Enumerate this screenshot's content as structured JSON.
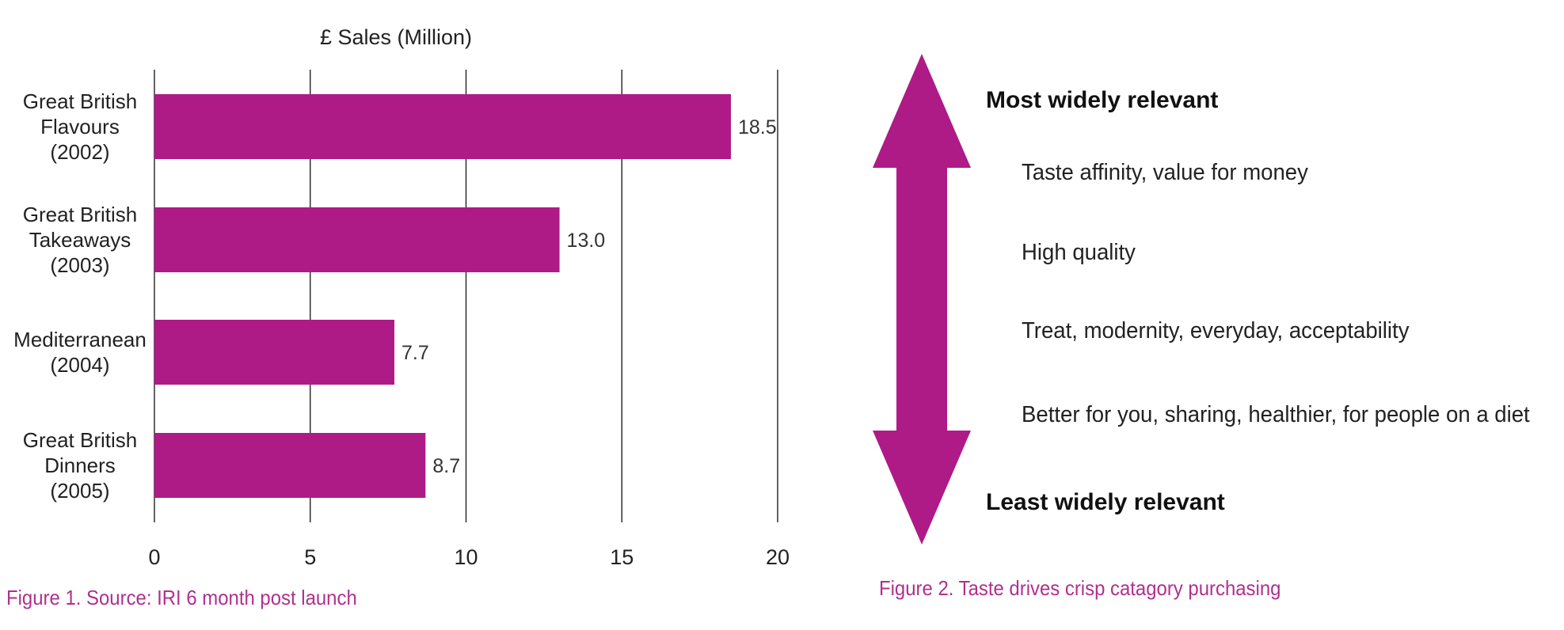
{
  "colors": {
    "bar": "#ae1a86",
    "caption": "#b0308f",
    "arrow": "#ae1a86"
  },
  "chart_data": {
    "type": "bar",
    "orientation": "horizontal",
    "title": "£ Sales (Million)",
    "categories": [
      [
        "Great British",
        "Flavours",
        "(2002)"
      ],
      [
        "Great British",
        "Takeaways",
        "(2003)"
      ],
      [
        "Mediterranean",
        "(2004)"
      ],
      [
        "Great British",
        "Dinners",
        "(2005)"
      ]
    ],
    "values": [
      18.5,
      13.0,
      7.7,
      8.7
    ],
    "value_labels": [
      "18.5",
      "13.0",
      "7.7",
      "8.7"
    ],
    "xlim": [
      0,
      20
    ],
    "xticks": [
      0,
      5,
      10,
      15,
      20
    ],
    "grid": true
  },
  "figure1": {
    "caption": "Figure 1. Source: IRI 6 month post launch"
  },
  "figure2": {
    "arrow_icon": "double-headed-vertical-arrow-icon",
    "top_label": "Most widely relevant",
    "bottom_label": "Least widely relevant",
    "items": [
      "Taste affinity, value for money",
      "High quality",
      "Treat, modernity, everyday, acceptability",
      "Better for you, sharing, healthier, for people on a diet"
    ],
    "caption": "Figure 2. Taste drives crisp catagory purchasing"
  }
}
